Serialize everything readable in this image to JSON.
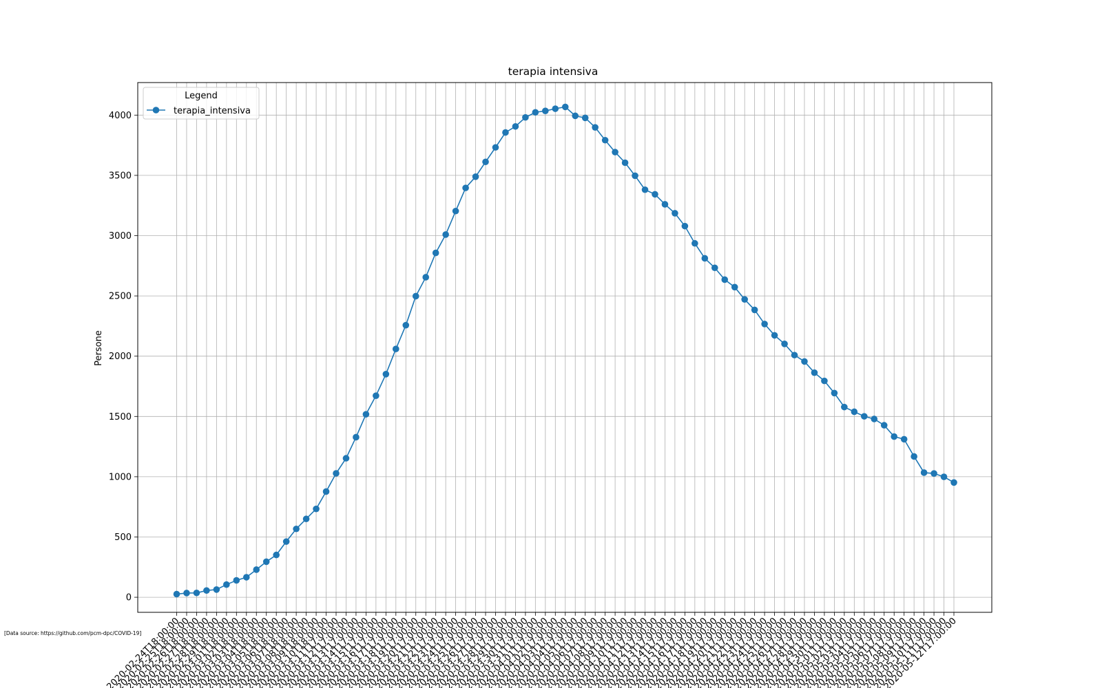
{
  "source_note": "[Data source: https://github.com/pcm-dpc/COVID-19]",
  "chart_data": {
    "type": "line",
    "title": "terapia intensiva",
    "xlabel": "",
    "ylabel": "Persone",
    "ylim": [
      -125,
      4270
    ],
    "yticks": [
      0,
      500,
      1000,
      1500,
      2000,
      2500,
      3000,
      3500,
      4000
    ],
    "grid": true,
    "legend": {
      "title": "Legend",
      "placement": "top-left"
    },
    "colors": {
      "series": "#1f77b4",
      "grid": "#b0b0b0"
    },
    "x": [
      "2020-02-24T18:00:00",
      "2020-02-25T18:00:00",
      "2020-02-26T18:00:00",
      "2020-02-27T18:00:00",
      "2020-02-28T18:00:00",
      "2020-02-29T18:00:00",
      "2020-03-01T18:00:00",
      "2020-03-02T18:00:00",
      "2020-03-03T18:00:00",
      "2020-03-04T18:00:00",
      "2020-03-05T18:00:00",
      "2020-03-06T18:00:00",
      "2020-03-07T18:00:00",
      "2020-03-08T18:00:00",
      "2020-03-09T18:00:00",
      "2020-03-10T18:00:00",
      "2020-03-11T17:00:00",
      "2020-03-12T17:00:00",
      "2020-03-13T17:00:00",
      "2020-03-14T17:00:00",
      "2020-03-15T17:00:00",
      "2020-03-16T17:00:00",
      "2020-03-17T17:00:00",
      "2020-03-18T17:00:00",
      "2020-03-19T17:00:00",
      "2020-03-20T17:00:00",
      "2020-03-21T17:00:00",
      "2020-03-22T17:00:00",
      "2020-03-23T17:00:00",
      "2020-03-24T17:00:00",
      "2020-03-25T17:00:00",
      "2020-03-26T17:00:00",
      "2020-03-27T17:00:00",
      "2020-03-28T17:00:00",
      "2020-03-29T17:00:00",
      "2020-03-30T17:00:00",
      "2020-03-31T17:00:00",
      "2020-04-01T17:00:00",
      "2020-04-02T17:00:00",
      "2020-04-03T17:00:00",
      "2020-04-04T17:00:00",
      "2020-04-05T17:00:00",
      "2020-04-06T17:00:00",
      "2020-04-07T17:00:00",
      "2020-04-08T17:00:00",
      "2020-04-09T17:00:00",
      "2020-04-10T17:00:00",
      "2020-04-11T17:00:00",
      "2020-04-12T17:00:00",
      "2020-04-13T17:00:00",
      "2020-04-14T17:00:00",
      "2020-04-15T17:00:00",
      "2020-04-16T17:00:00",
      "2020-04-17T17:00:00",
      "2020-04-18T17:00:00",
      "2020-04-19T17:00:00",
      "2020-04-20T17:00:00",
      "2020-04-21T17:00:00",
      "2020-04-22T17:00:00",
      "2020-04-23T17:00:00",
      "2020-04-24T17:00:00",
      "2020-04-25T17:00:00",
      "2020-04-26T17:00:00",
      "2020-04-27T17:00:00",
      "2020-04-28T17:00:00",
      "2020-04-29T17:00:00",
      "2020-04-30T17:00:00",
      "2020-05-01T17:00:00",
      "2020-05-02T17:00:00",
      "2020-05-03T17:00:00",
      "2020-05-04T17:00:00",
      "2020-05-05T17:00:00",
      "2020-05-06T17:00:00",
      "2020-05-07T17:00:00",
      "2020-05-08T17:00:00",
      "2020-05-09T17:00:00",
      "2020-05-10T17:00:00",
      "2020-05-11T17:00:00",
      "2020-05-12T17:00:00"
    ],
    "series": [
      {
        "name": "terapia_intensiva",
        "values": [
          26,
          35,
          36,
          56,
          64,
          105,
          140,
          166,
          229,
          295,
          351,
          462,
          567,
          650,
          733,
          877,
          1028,
          1153,
          1328,
          1518,
          1672,
          1851,
          2060,
          2257,
          2498,
          2655,
          2857,
          3009,
          3204,
          3396,
          3489,
          3612,
          3732,
          3856,
          3906,
          3981,
          4023,
          4035,
          4053,
          4068,
          3994,
          3977,
          3898,
          3792,
          3693,
          3605,
          3497,
          3381,
          3343,
          3260,
          3186,
          3079,
          2936,
          2812,
          2733,
          2635,
          2573,
          2471,
          2384,
          2267,
          2173,
          2102,
          2009,
          1956,
          1863,
          1795,
          1694,
          1578,
          1539,
          1501,
          1479,
          1427,
          1333,
          1311,
          1168,
          1034,
          1027,
          999,
          952
        ]
      }
    ]
  }
}
